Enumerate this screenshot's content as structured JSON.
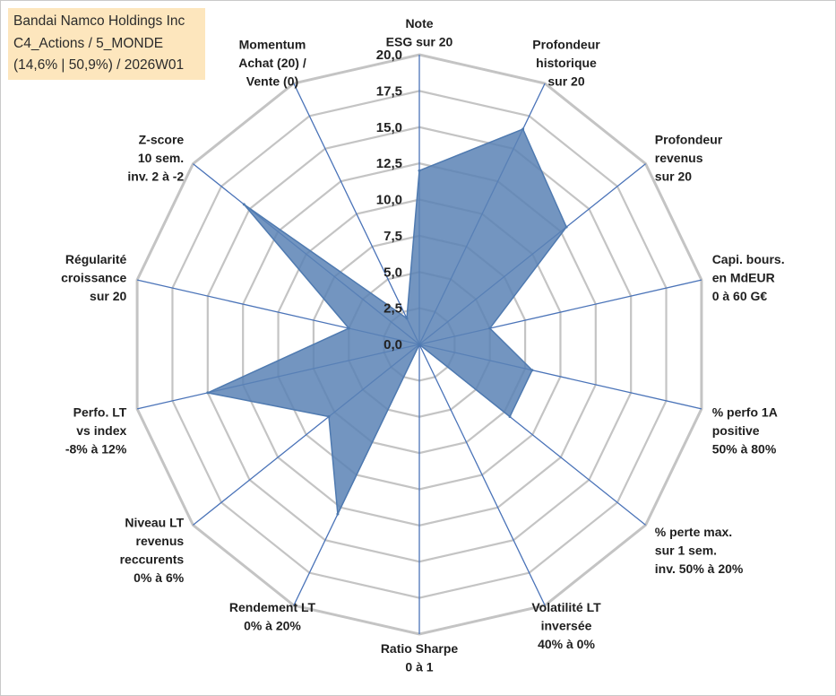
{
  "chart_data": {
    "type": "radar",
    "title": {
      "company": "Bandai Namco Holdings Inc",
      "category": "C4_Actions / 5_MONDE",
      "detail": "(14,6% | 50,9%) / 2026W01"
    },
    "r_range": [
      0,
      20
    ],
    "ticks": [
      "0,0",
      "2,5",
      "5,0",
      "7,5",
      "10,0",
      "12,5",
      "15,0",
      "17,5",
      "20,0"
    ],
    "axes": [
      {
        "label": [
          "Note",
          "ESG sur 20"
        ],
        "value": 12.0
      },
      {
        "label": [
          "Profondeur",
          "historique",
          "sur 20"
        ],
        "value": 16.5
      },
      {
        "label": [
          "Profondeur",
          "revenus",
          "sur 20"
        ],
        "value": 13.0
      },
      {
        "label": [
          "Capi. bours.",
          "en MdEUR",
          "0 à 60 G€"
        ],
        "value": 5.0
      },
      {
        "label": [
          "% perfo 1A",
          "positive",
          "50% à 80%"
        ],
        "value": 8.0
      },
      {
        "label": [
          "% perte max.",
          "sur 1 sem.",
          "inv. 50% à 20%"
        ],
        "value": 8.0
      },
      {
        "label": [
          "Volatilité LT",
          "inversée",
          "40% à 0%"
        ],
        "value": 0.0
      },
      {
        "label": [
          "Ratio Sharpe",
          "0 à 1"
        ],
        "value": 0.0
      },
      {
        "label": [
          "Rendement LT",
          "0% à 20%"
        ],
        "value": 13.0
      },
      {
        "label": [
          "Niveau LT",
          "revenus",
          "reccurents",
          "0% à 6%"
        ],
        "value": 8.0
      },
      {
        "label": [
          "Perfo. LT",
          "vs index",
          "-8% à 12%"
        ],
        "value": 15.0
      },
      {
        "label": [
          "Régularité",
          "croissance",
          "sur 20"
        ],
        "value": 5.0
      },
      {
        "label": [
          "Z-score",
          "10 sem.",
          "inv. 2 à -2"
        ],
        "value": 15.5
      },
      {
        "label": [
          "Momentum",
          "Achat (20) /",
          "Vente (0)"
        ],
        "value": 2.0
      }
    ],
    "colors": {
      "fill": "#5b82b5",
      "stroke": "#4f7ab0",
      "axis": "#4a73b8",
      "grid": "#c4c4c4",
      "title_bg": "#fde6bd"
    }
  }
}
